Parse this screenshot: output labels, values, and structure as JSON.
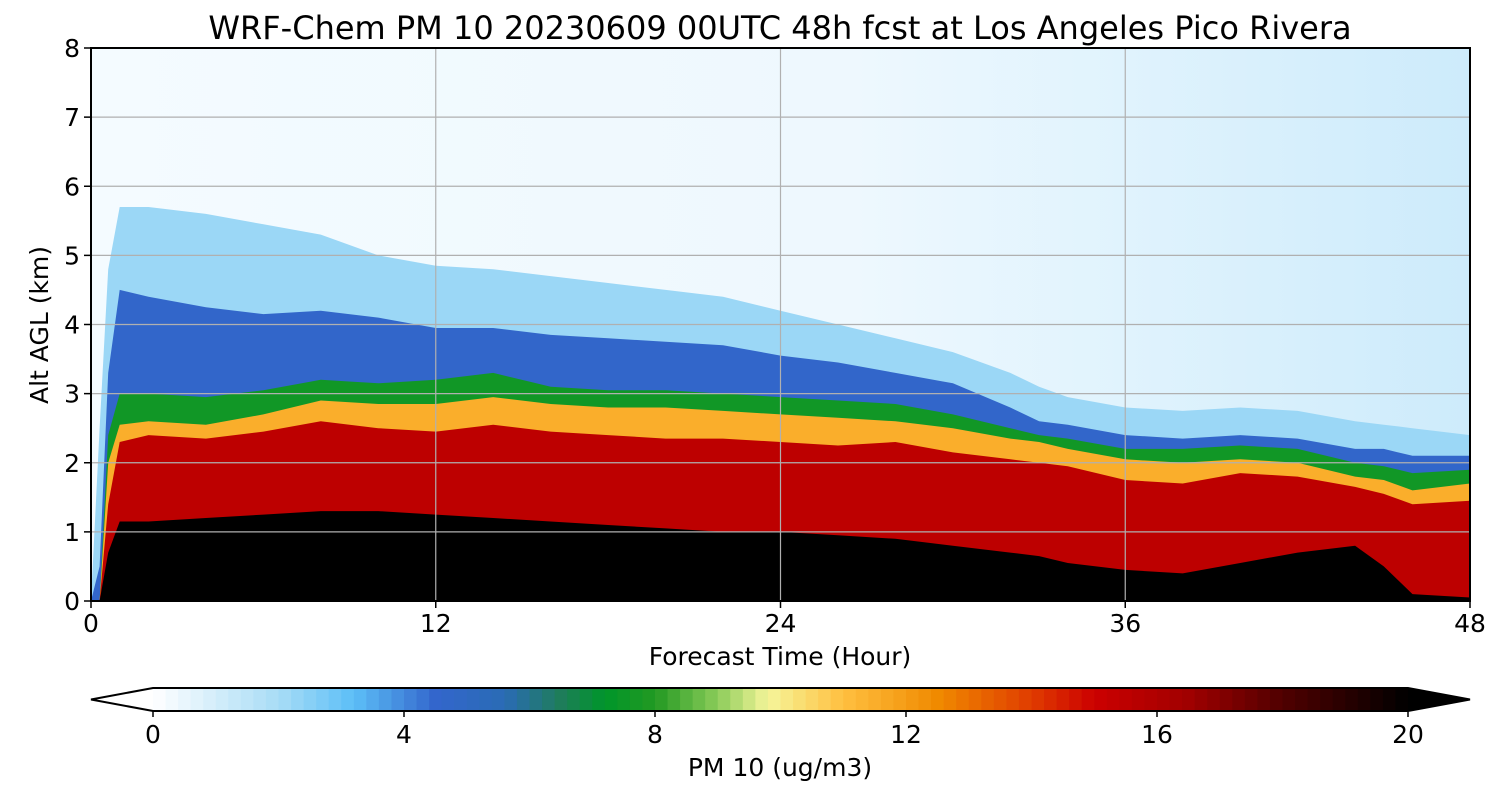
{
  "chart_data": {
    "type": "heatmap",
    "title": "WRF-Chem PM 10  20230609 00UTC 48h fcst at Los Angeles Pico Rivera",
    "xlabel": "Forecast Time (Hour)",
    "ylabel": "Alt AGL (km)",
    "xlim": [
      0,
      48
    ],
    "ylim": [
      0,
      8
    ],
    "x_ticks": [
      0,
      12,
      24,
      36,
      48
    ],
    "y_ticks": [
      0,
      1,
      2,
      3,
      4,
      5,
      6,
      7,
      8
    ],
    "grid": true,
    "colorbar": {
      "label": "PM 10  (ug/m3)",
      "min": 0,
      "max": 20,
      "ticks": [
        0,
        4,
        8,
        12,
        16,
        20
      ],
      "extend": "both",
      "orientation": "horizontal",
      "colormap_stops": [
        {
          "value": 0,
          "color": "#ffffff"
        },
        {
          "value": 2,
          "color": "#a8dcf6"
        },
        {
          "value": 3.2,
          "color": "#5cbff7"
        },
        {
          "value": 4.5,
          "color": "#3366cc"
        },
        {
          "value": 5.6,
          "color": "#2a6bb5"
        },
        {
          "value": 6.5,
          "color": "#1e7d5a"
        },
        {
          "value": 7.2,
          "color": "#00952a"
        },
        {
          "value": 8,
          "color": "#229922"
        },
        {
          "value": 9,
          "color": "#8ccc5a"
        },
        {
          "value": 9.8,
          "color": "#f5f59a"
        },
        {
          "value": 11,
          "color": "#ffc040"
        },
        {
          "value": 12.5,
          "color": "#f08a00"
        },
        {
          "value": 14,
          "color": "#e03c00"
        },
        {
          "value": 15,
          "color": "#cc0000"
        },
        {
          "value": 16.5,
          "color": "#a00000"
        },
        {
          "value": 18,
          "color": "#500000"
        },
        {
          "value": 20,
          "color": "#000000"
        }
      ]
    },
    "layers": {
      "x": [
        0,
        0.3,
        0.6,
        1,
        2,
        4,
        6,
        8,
        10,
        12,
        14,
        16,
        18,
        20,
        22,
        24,
        26,
        28,
        30,
        32,
        33,
        34,
        36,
        38,
        40,
        42,
        44,
        45,
        46,
        48
      ],
      "black_top_km": [
        0,
        0,
        0.7,
        1.15,
        1.15,
        1.2,
        1.25,
        1.3,
        1.3,
        1.25,
        1.2,
        1.15,
        1.1,
        1.05,
        1.0,
        1.0,
        0.95,
        0.9,
        0.8,
        0.7,
        0.65,
        0.55,
        0.45,
        0.4,
        0.55,
        0.7,
        0.8,
        0.5,
        0.1,
        0.05
      ],
      "red_top_km": [
        0,
        0,
        1.4,
        2.3,
        2.4,
        2.35,
        2.45,
        2.6,
        2.5,
        2.45,
        2.55,
        2.45,
        2.4,
        2.35,
        2.35,
        2.3,
        2.25,
        2.3,
        2.15,
        2.05,
        2.0,
        1.95,
        1.75,
        1.7,
        1.85,
        1.8,
        1.65,
        1.55,
        1.4,
        1.45
      ],
      "orange_top_km": [
        0,
        0,
        2.0,
        2.55,
        2.6,
        2.55,
        2.7,
        2.9,
        2.85,
        2.85,
        2.95,
        2.85,
        2.8,
        2.8,
        2.75,
        2.7,
        2.65,
        2.6,
        2.5,
        2.35,
        2.3,
        2.2,
        2.05,
        2.0,
        2.05,
        2.0,
        1.8,
        1.75,
        1.6,
        1.7
      ],
      "green_top_km": [
        0,
        0,
        2.4,
        3.0,
        3.0,
        2.95,
        3.05,
        3.2,
        3.15,
        3.2,
        3.3,
        3.1,
        3.05,
        3.05,
        3.0,
        2.95,
        2.9,
        2.85,
        2.7,
        2.5,
        2.4,
        2.35,
        2.2,
        2.2,
        2.25,
        2.2,
        2.0,
        1.95,
        1.85,
        1.9
      ],
      "blue_top_km": [
        0,
        0.5,
        3.3,
        4.5,
        4.4,
        4.25,
        4.15,
        4.2,
        4.1,
        3.95,
        3.95,
        3.85,
        3.8,
        3.75,
        3.7,
        3.55,
        3.45,
        3.3,
        3.15,
        2.8,
        2.6,
        2.55,
        2.4,
        2.35,
        2.4,
        2.35,
        2.2,
        2.2,
        2.1,
        2.1
      ],
      "lightblue_top_km": [
        0,
        2.5,
        4.8,
        5.7,
        5.7,
        5.6,
        5.45,
        5.3,
        5.0,
        4.85,
        4.8,
        4.7,
        4.6,
        4.5,
        4.4,
        4.2,
        4.0,
        3.8,
        3.6,
        3.3,
        3.1,
        2.95,
        2.8,
        2.75,
        2.8,
        2.75,
        2.6,
        2.55,
        2.5,
        2.4
      ]
    }
  }
}
